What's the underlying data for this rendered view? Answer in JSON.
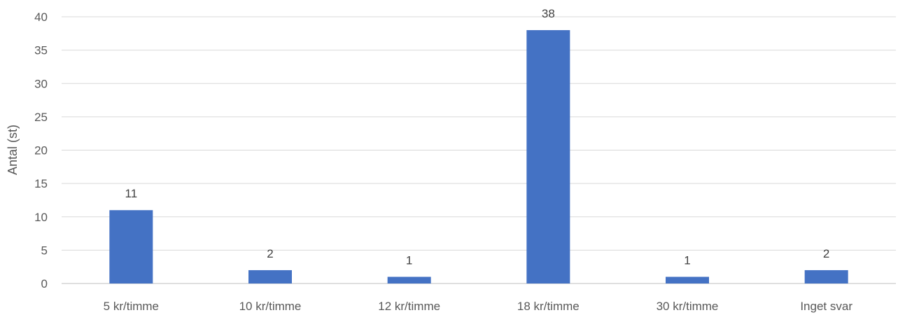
{
  "chart_data": {
    "type": "bar",
    "title": "",
    "xlabel": "",
    "ylabel": "Antal (st)",
    "categories": [
      "5 kr/timme",
      "10 kr/timme",
      "12 kr/timme",
      "18 kr/timme",
      "30 kr/timme",
      "Inget svar"
    ],
    "values": [
      11,
      2,
      1,
      38,
      1,
      2
    ],
    "ylim": [
      0,
      40
    ],
    "yticks": [
      0,
      5,
      10,
      15,
      20,
      25,
      30,
      35,
      40
    ],
    "grid": true,
    "legend": "none",
    "bar_color": "#4472C4"
  }
}
